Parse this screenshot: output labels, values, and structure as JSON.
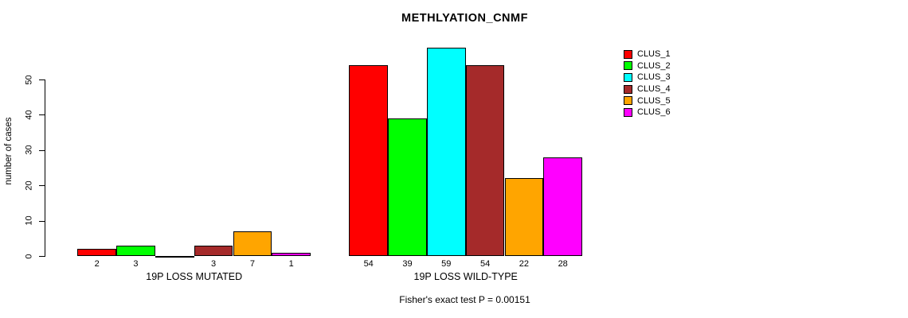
{
  "chart_data": {
    "type": "bar",
    "title": "METHLYATION_CNMF",
    "ylabel": "number of cases",
    "xlabel": "",
    "ylim": [
      0,
      59
    ],
    "yticks": [
      0,
      10,
      20,
      30,
      40,
      50
    ],
    "grid": false,
    "legend_position": "right",
    "categories": [
      "19P LOSS MUTATED",
      "19P LOSS WILD-TYPE"
    ],
    "series": [
      {
        "name": "CLUS_1",
        "color": "#ff0000",
        "values": [
          2,
          54
        ]
      },
      {
        "name": "CLUS_2",
        "color": "#00ff00",
        "values": [
          3,
          39
        ]
      },
      {
        "name": "CLUS_3",
        "color": "#00ffff",
        "values": [
          0,
          59
        ]
      },
      {
        "name": "CLUS_4",
        "color": "#a52a2a",
        "values": [
          3,
          54
        ]
      },
      {
        "name": "CLUS_5",
        "color": "#ffa500",
        "values": [
          7,
          22
        ]
      },
      {
        "name": "CLUS_6",
        "color": "#ff00ff",
        "values": [
          1,
          28
        ]
      }
    ],
    "bar_value_labels": {
      "19P LOSS MUTATED": [
        "2",
        "3",
        "",
        "3",
        "7",
        "1"
      ],
      "19P LOSS WILD-TYPE": [
        "54",
        "39",
        "59",
        "54",
        "22",
        "28"
      ]
    },
    "annotation": "Fisher's exact test P = 0.00151"
  }
}
